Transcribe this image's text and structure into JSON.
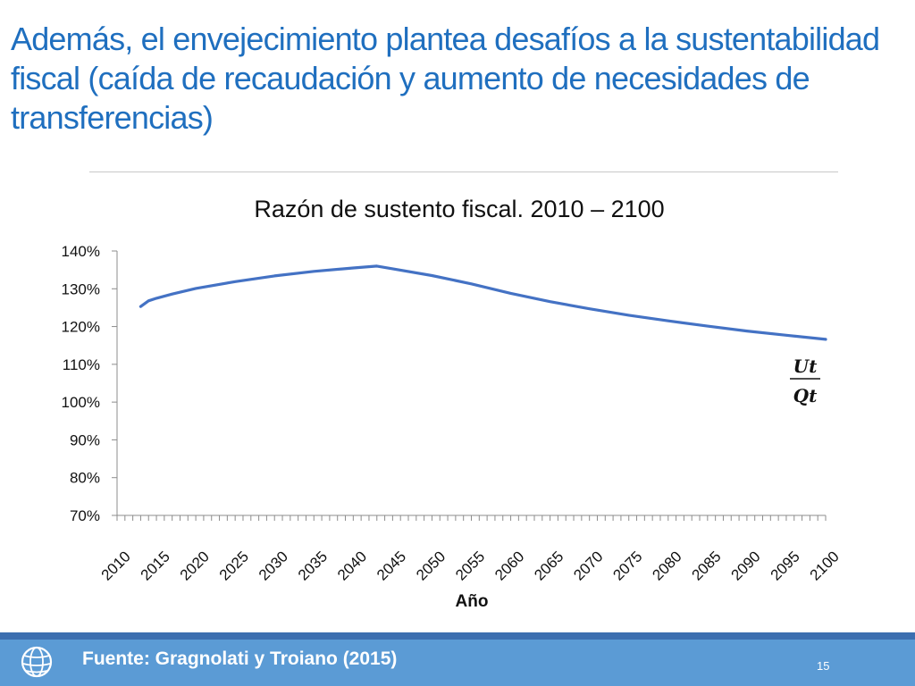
{
  "slide": {
    "title": "Además, el envejecimiento plantea desafíos a la sustentabilidad fiscal (caída de recaudación y aumento de necesidades de transferencias)",
    "source": "Fuente: Gragnolati y Troiano (2015)",
    "page_number": "15"
  },
  "formula": {
    "numerator": "Ut",
    "denominator": "Qt"
  },
  "chart_data": {
    "type": "line",
    "title": "Razón de sustento fiscal. 2010 – 2100",
    "xlabel": "Año",
    "ylabel": "",
    "ylim": [
      70,
      140
    ],
    "xlim": [
      2010,
      2100
    ],
    "y_ticks": [
      "70%",
      "80%",
      "90%",
      "100%",
      "110%",
      "120%",
      "130%",
      "140%"
    ],
    "x_tick_labels": [
      "2010",
      "2015",
      "2020",
      "2025",
      "2030",
      "2035",
      "2040",
      "2045",
      "2050",
      "2055",
      "2060",
      "2065",
      "2070",
      "2075",
      "2080",
      "2085",
      "2090",
      "2095",
      "2100"
    ],
    "grid": false,
    "legend": "none",
    "color": "#4472c4",
    "series": [
      {
        "x": [
          2013,
          2014,
          2015,
          2017,
          2020,
          2025,
          2030,
          2035,
          2040,
          2043,
          2045,
          2050,
          2055,
          2060,
          2065,
          2070,
          2075,
          2080,
          2085,
          2090,
          2095,
          2100
        ],
        "values": [
          125.3,
          126.8,
          127.5,
          128.6,
          130.1,
          131.9,
          133.4,
          134.6,
          135.5,
          136.0,
          135.3,
          133.5,
          131.3,
          128.8,
          126.6,
          124.7,
          123.0,
          121.5,
          120.1,
          118.8,
          117.7,
          116.6
        ]
      }
    ]
  }
}
